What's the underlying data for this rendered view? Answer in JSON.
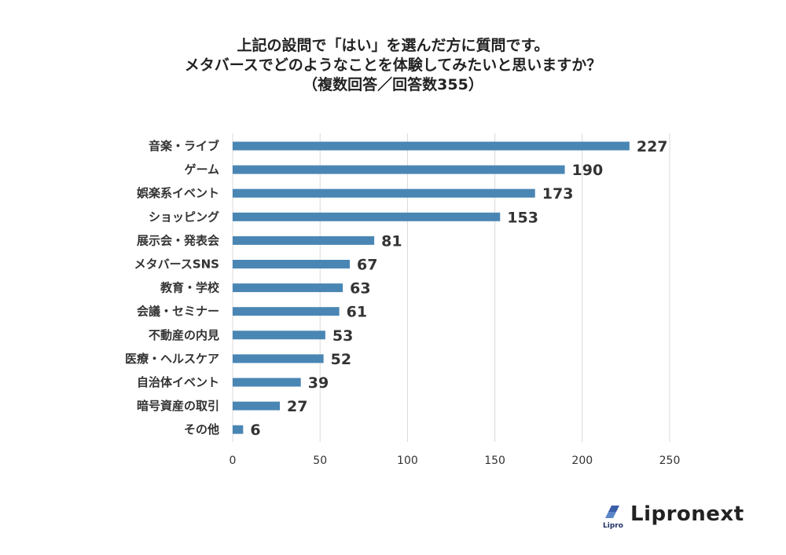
{
  "chart_data": {
    "type": "bar",
    "orientation": "horizontal",
    "title_lines": [
      "上記の設問で「はい」を選んだ方に質問です。",
      "メタバースでどのようなことを体験してみたいと思いますか？",
      "（複数回答／回答数355）"
    ],
    "categories": [
      "音楽・ライブ",
      "ゲーム",
      "娯楽系イベント",
      "ショッピング",
      "展示会・発表会",
      "メタバースSNS",
      "教育・学校",
      "会議・セミナー",
      "不動産の内見",
      "医療・ヘルスケア",
      "自治体イベント",
      "暗号資産の取引",
      "その他"
    ],
    "values": [
      227,
      190,
      173,
      153,
      81,
      67,
      63,
      61,
      53,
      52,
      39,
      27,
      6
    ],
    "xlim": [
      0,
      250
    ],
    "xticks": [
      0,
      50,
      100,
      150,
      200,
      250
    ],
    "grid": true,
    "bar_color": "#4a86b4",
    "grid_color": "#d9d9d9"
  },
  "brand": {
    "name": "Lipronext",
    "logo_mark": "Lipro"
  }
}
